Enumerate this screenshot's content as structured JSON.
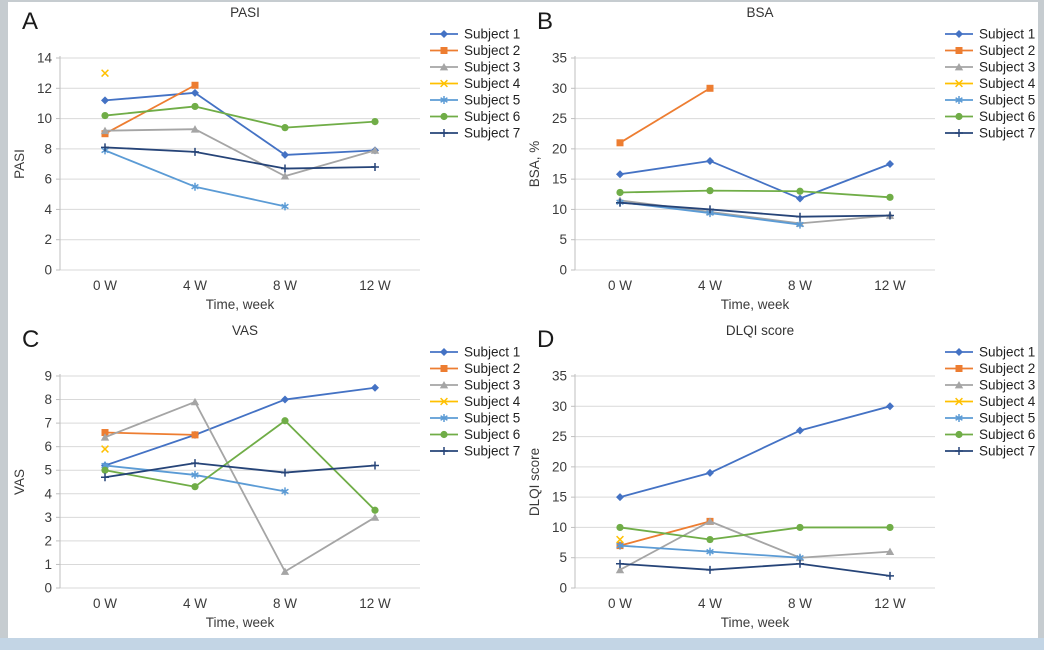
{
  "figure": {
    "x_axis_label": "Time, week",
    "categories": [
      "0 W",
      "4 W",
      "8 W",
      "12 W"
    ],
    "colors": {
      "background": "#ffffff",
      "frame_border": "#c6ccd0",
      "frame_bottom": "#c3d5e5",
      "gridline": "#d9d9d9",
      "axis_line": "#bfbfbf",
      "tick_text": "#3b3b3b",
      "title_text": "#333333",
      "letter_text": "#1a1a1a"
    },
    "legend_labels": [
      "Subject 1",
      "Subject 2",
      "Subject 3",
      "Subject 4",
      "Subject 5",
      "Subject 6",
      "Subject 7"
    ],
    "palette": [
      "#4472C4",
      "#ED7D31",
      "#A5A5A5",
      "#FFC000",
      "#5B9BD5",
      "#70AD47",
      "#264478"
    ],
    "markers": [
      "diamond",
      "square",
      "triangle",
      "x",
      "asterisk",
      "circle",
      "plus"
    ]
  },
  "chart_data": [
    {
      "panel": "A",
      "type": "line",
      "title": "PASI",
      "ylabel": "PASI",
      "xlabel": "Time, week",
      "categories": [
        "0 W",
        "4 W",
        "8 W",
        "12 W"
      ],
      "ylim": [
        0,
        14
      ],
      "ytick_step": 2,
      "grid": true,
      "legend_position": "right",
      "series": [
        {
          "name": "Subject 1",
          "color": "#4472C4",
          "marker": "diamond",
          "values": [
            11.2,
            11.7,
            7.6,
            7.9
          ]
        },
        {
          "name": "Subject 2",
          "color": "#ED7D31",
          "marker": "square",
          "values": [
            9.0,
            12.2,
            null,
            null
          ]
        },
        {
          "name": "Subject 3",
          "color": "#A5A5A5",
          "marker": "triangle",
          "values": [
            9.2,
            9.3,
            6.2,
            7.9
          ]
        },
        {
          "name": "Subject 4",
          "color": "#FFC000",
          "marker": "x",
          "values": [
            13.0,
            null,
            null,
            null
          ]
        },
        {
          "name": "Subject 5",
          "color": "#5B9BD5",
          "marker": "asterisk",
          "values": [
            7.9,
            5.5,
            4.2,
            null
          ]
        },
        {
          "name": "Subject 6",
          "color": "#70AD47",
          "marker": "circle",
          "values": [
            10.2,
            10.8,
            9.4,
            9.8
          ]
        },
        {
          "name": "Subject 7",
          "color": "#264478",
          "marker": "plus",
          "values": [
            8.1,
            7.8,
            6.7,
            6.8
          ]
        }
      ]
    },
    {
      "panel": "B",
      "type": "line",
      "title": "BSA",
      "ylabel": "BSA, %",
      "xlabel": "Time, week",
      "categories": [
        "0 W",
        "4 W",
        "8 W",
        "12 W"
      ],
      "ylim": [
        0,
        35
      ],
      "ytick_step": 5,
      "grid": true,
      "legend_position": "right",
      "series": [
        {
          "name": "Subject 1",
          "color": "#4472C4",
          "marker": "diamond",
          "values": [
            15.8,
            18.0,
            11.8,
            17.5
          ]
        },
        {
          "name": "Subject 2",
          "color": "#ED7D31",
          "marker": "square",
          "values": [
            21.0,
            30.0,
            null,
            null
          ]
        },
        {
          "name": "Subject 3",
          "color": "#A5A5A5",
          "marker": "triangle",
          "values": [
            11.5,
            9.6,
            7.7,
            9.0
          ]
        },
        {
          "name": "Subject 4",
          "color": "#FFC000",
          "marker": "x",
          "values": [
            null,
            null,
            null,
            null
          ]
        },
        {
          "name": "Subject 5",
          "color": "#5B9BD5",
          "marker": "asterisk",
          "values": [
            11.2,
            9.4,
            7.5,
            null
          ]
        },
        {
          "name": "Subject 6",
          "color": "#70AD47",
          "marker": "circle",
          "values": [
            12.8,
            13.1,
            13.0,
            12.0
          ]
        },
        {
          "name": "Subject 7",
          "color": "#264478",
          "marker": "plus",
          "values": [
            11.1,
            10.0,
            8.8,
            9.0
          ]
        }
      ]
    },
    {
      "panel": "C",
      "type": "line",
      "title": "VAS",
      "ylabel": "VAS",
      "xlabel": "Time, week",
      "categories": [
        "0 W",
        "4 W",
        "8 W",
        "12 W"
      ],
      "ylim": [
        0,
        9
      ],
      "ytick_step": 1,
      "grid": true,
      "legend_position": "right",
      "series": [
        {
          "name": "Subject 1",
          "color": "#4472C4",
          "marker": "diamond",
          "values": [
            5.2,
            6.5,
            8.0,
            8.5
          ]
        },
        {
          "name": "Subject 2",
          "color": "#ED7D31",
          "marker": "square",
          "values": [
            6.6,
            6.5,
            null,
            null
          ]
        },
        {
          "name": "Subject 3",
          "color": "#A5A5A5",
          "marker": "triangle",
          "values": [
            6.4,
            7.9,
            0.7,
            3.0
          ]
        },
        {
          "name": "Subject 4",
          "color": "#FFC000",
          "marker": "x",
          "values": [
            5.9,
            null,
            null,
            null
          ]
        },
        {
          "name": "Subject 5",
          "color": "#5B9BD5",
          "marker": "asterisk",
          "values": [
            5.2,
            4.8,
            4.1,
            null
          ]
        },
        {
          "name": "Subject 6",
          "color": "#70AD47",
          "marker": "circle",
          "values": [
            5.0,
            4.3,
            7.1,
            3.3
          ]
        },
        {
          "name": "Subject 7",
          "color": "#264478",
          "marker": "plus",
          "values": [
            4.7,
            5.3,
            4.9,
            5.2
          ]
        }
      ]
    },
    {
      "panel": "D",
      "type": "line",
      "title": "DLQI score",
      "ylabel": "DLQI score",
      "xlabel": "Time, week",
      "categories": [
        "0 W",
        "4 W",
        "8 W",
        "12 W"
      ],
      "ylim": [
        0,
        35
      ],
      "ytick_step": 5,
      "grid": true,
      "legend_position": "right",
      "series": [
        {
          "name": "Subject 1",
          "color": "#4472C4",
          "marker": "diamond",
          "values": [
            15,
            19,
            26,
            30
          ]
        },
        {
          "name": "Subject 2",
          "color": "#ED7D31",
          "marker": "square",
          "values": [
            7,
            11,
            null,
            null
          ]
        },
        {
          "name": "Subject 3",
          "color": "#A5A5A5",
          "marker": "triangle",
          "values": [
            3,
            11,
            5,
            6
          ]
        },
        {
          "name": "Subject 4",
          "color": "#FFC000",
          "marker": "x",
          "values": [
            8,
            null,
            null,
            null
          ]
        },
        {
          "name": "Subject 5",
          "color": "#5B9BD5",
          "marker": "asterisk",
          "values": [
            7,
            6,
            5,
            null
          ]
        },
        {
          "name": "Subject 6",
          "color": "#70AD47",
          "marker": "circle",
          "values": [
            10,
            8,
            10,
            10
          ]
        },
        {
          "name": "Subject 7",
          "color": "#264478",
          "marker": "plus",
          "values": [
            4,
            3,
            4,
            2
          ]
        }
      ]
    }
  ]
}
